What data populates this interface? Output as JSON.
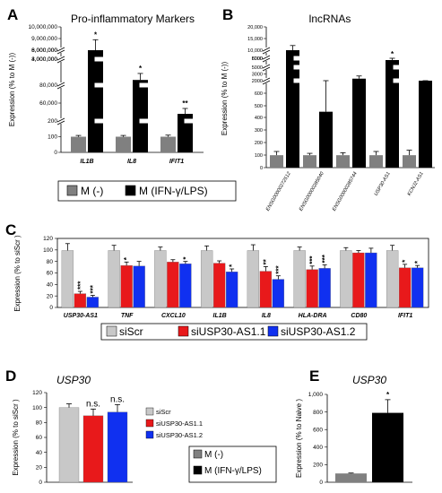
{
  "panels": {
    "a": {
      "label": "A"
    },
    "b": {
      "label": "B"
    },
    "c": {
      "label": "C"
    },
    "d": {
      "label": "D"
    },
    "e": {
      "label": "E"
    }
  },
  "legend_ab": {
    "items": [
      "M (-)",
      "M (IFN-γ/LPS)"
    ],
    "colors": [
      "#808080",
      "#000000"
    ]
  },
  "legend_c": {
    "items": [
      "siScr",
      "siUSP30-AS1.1",
      "siUSP30-AS1.2"
    ],
    "colors": [
      "#c8c8c8",
      "#e8191b",
      "#1030f0"
    ]
  },
  "legend_d": {
    "items": [
      "siScr",
      "siUSP30-AS1.1",
      "siUSP30-AS1.2"
    ],
    "colors": [
      "#c8c8c8",
      "#e8191b",
      "#1030f0"
    ]
  },
  "legend_de": {
    "items": [
      "M (-)",
      "M (IFN-γ/LPS)"
    ],
    "colors": [
      "#808080",
      "#000000"
    ]
  },
  "chart_data": [
    {
      "id": "a",
      "type": "bar",
      "title": "Pro-inflammatory Markers",
      "ylabel": "Expression (% to M (-))",
      "yscale": "broken",
      "yticks": [
        "0",
        "100",
        "200",
        "40,000",
        "60,000",
        "80,000",
        "2,000,000",
        "3,000,000",
        "4,000,000",
        "6,000,000",
        "8,000,000",
        "9,000,000",
        "10,000,000"
      ],
      "categories": [
        "IL1B",
        "IL8",
        "IFIT1"
      ],
      "series": [
        {
          "values": [
            100,
            100,
            100
          ],
          "errors": [
            8,
            8,
            10
          ]
        },
        {
          "values": [
            8000000,
            2200000,
            48000
          ],
          "errors": [
            900000,
            250000,
            6000
          ]
        }
      ],
      "annotations": [
        "*",
        "*",
        "**"
      ]
    },
    {
      "id": "b",
      "type": "bar",
      "title": "lncRNAs",
      "ylabel": "Expression (% to M (-))",
      "yscale": "broken",
      "yticks": [
        "0",
        "100",
        "200",
        "300",
        "400",
        "500",
        "600",
        "700",
        "2000",
        "3000",
        "4000",
        "5000",
        "6000",
        "8000",
        "10,000",
        "15,000",
        "20,000"
      ],
      "categories": [
        "ENSG00000272512",
        "ENSG00000285040",
        "ENSG00000285744",
        "USP30-AS1",
        "KCNJ2-AS1"
      ],
      "series": [
        {
          "values": [
            100,
            100,
            100,
            100,
            100
          ],
          "errors": [
            30,
            15,
            20,
            30,
            40
          ]
        },
        {
          "values": [
            12000,
            450,
            2300,
            5800,
            1500
          ],
          "errors": [
            4000,
            350,
            400,
            500,
            150
          ]
        }
      ],
      "annotations": [
        "",
        "",
        "",
        "*",
        ""
      ]
    },
    {
      "id": "c",
      "type": "bar",
      "ylabel": "Expression (% to siScr )",
      "ylim": [
        0,
        120
      ],
      "yticks": [
        "0",
        "20",
        "40",
        "60",
        "80",
        "100",
        "120"
      ],
      "categories": [
        "USP30-AS1",
        "TNF",
        "CXCL10",
        "IL1B",
        "IL8",
        "HLA-DRA",
        "CD80",
        "IFIT1"
      ],
      "series": [
        {
          "values": [
            99,
            99,
            99,
            99,
            99,
            99,
            99,
            99
          ],
          "errors": [
            12,
            9,
            6,
            8,
            10,
            6,
            5,
            9
          ]
        },
        {
          "values": [
            24,
            73,
            79,
            77,
            63,
            66,
            95,
            69
          ],
          "errors": [
            4,
            6,
            4,
            4,
            8,
            6,
            4,
            6
          ]
        },
        {
          "values": [
            18,
            72,
            76,
            62,
            49,
            68,
            95,
            69
          ],
          "errors": [
            3,
            8,
            4,
            5,
            6,
            6,
            8,
            4
          ]
        }
      ],
      "annotations": [
        [
          "",
          "***",
          "***"
        ],
        [
          "",
          "*",
          ""
        ],
        [
          "",
          "",
          "*"
        ],
        [
          "",
          "",
          "*"
        ],
        [
          "",
          "**",
          "***"
        ],
        [
          "",
          "***",
          "***"
        ],
        [
          "",
          "",
          ""
        ],
        [
          "",
          "*",
          "*"
        ]
      ]
    },
    {
      "id": "d",
      "type": "bar",
      "title": "USP30",
      "ylabel": "Expression (% to siScr )",
      "ylim": [
        0,
        120
      ],
      "yticks": [
        "0",
        "20",
        "40",
        "60",
        "80",
        "100",
        "120"
      ],
      "categories": [
        ""
      ],
      "series": [
        {
          "values": [
            100
          ],
          "errors": [
            5
          ]
        },
        {
          "values": [
            89
          ],
          "errors": [
            9
          ]
        },
        {
          "values": [
            94
          ],
          "errors": [
            10
          ]
        }
      ],
      "annotations": [
        "",
        "n.s.",
        "n.s."
      ]
    },
    {
      "id": "e",
      "type": "bar",
      "title": "USP30",
      "ylabel": "Expression (% to Naive )",
      "ylim": [
        0,
        1000
      ],
      "yticks": [
        "0",
        "200",
        "400",
        "600",
        "800",
        "1,000"
      ],
      "categories": [
        ""
      ],
      "series": [
        {
          "values": [
            100
          ],
          "errors": [
            5
          ]
        },
        {
          "values": [
            790
          ],
          "errors": [
            150
          ]
        }
      ],
      "annotations": [
        "",
        "*"
      ]
    }
  ]
}
